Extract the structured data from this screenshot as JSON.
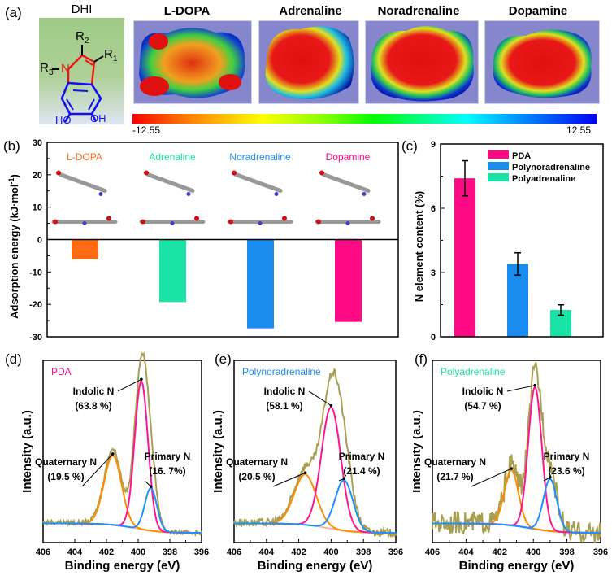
{
  "panel_a": {
    "label": "(a)",
    "dhi": {
      "title": "DHI",
      "r1": "R",
      "r1_sub": "1",
      "r2": "R",
      "r2_sub": "2",
      "r3": "R",
      "r3_sub": "3",
      "n": "N",
      "ho": "HO",
      "oh": "OH"
    },
    "molecules": [
      {
        "name": "L-DOPA",
        "color": "#ff6a13"
      },
      {
        "name": "Adrenaline",
        "color": "#19e3a6"
      },
      {
        "name": "Noradrenaline",
        "color": "#1a8cf0"
      },
      {
        "name": "Dopamine",
        "color": "#ff0a85"
      }
    ],
    "colorbar": {
      "min": "-12.55",
      "max": "12.55"
    }
  },
  "chart_data": [
    {
      "id": "b",
      "label": "(b)",
      "type": "bar",
      "title": "",
      "xlabel": "",
      "ylabel": "Adsorption energy (kJ·mol⁻¹)",
      "ylabel_main": "Adsorption energy (kJ·mol",
      "ylabel_sup": "-1",
      "ylabel_end": ")",
      "ylim": [
        -30,
        30
      ],
      "yticks": [
        "30",
        "20",
        "10",
        "0",
        "-10",
        "-20",
        "-30"
      ],
      "categories": [
        "L-DOPA",
        "Adrenaline",
        "Noradrenaline",
        "Dopamine"
      ],
      "values": [
        -6.1,
        -19.3,
        -27.4,
        -25.4
      ],
      "colors": [
        "#ff6a13",
        "#19e3a6",
        "#1a8cf0",
        "#ff0a85"
      ],
      "grid": false
    },
    {
      "id": "c",
      "label": "(c)",
      "type": "bar",
      "xlabel": "",
      "ylabel": "N element content (%)",
      "ylim": [
        0,
        9
      ],
      "yticks": [
        "9",
        "6",
        "3",
        "0"
      ],
      "categories": [
        "PDA",
        "Polynoradrenaline",
        "Polyadrenaline"
      ],
      "values": [
        7.4,
        3.4,
        1.25
      ],
      "errors": [
        0.82,
        0.52,
        0.24
      ],
      "colors": [
        "#ff0a85",
        "#1a8cf0",
        "#19e3a6"
      ],
      "legend": "top-right",
      "grid": false
    },
    {
      "id": "d",
      "label": "(d)",
      "type": "line",
      "sample": "PDA",
      "sample_color": "#ff0a85",
      "xlabel": "Binding energy (eV)",
      "ylabel": "Intensity (a.u.)",
      "xlim": [
        406,
        396
      ],
      "xticks": [
        "406",
        "404",
        "402",
        "400",
        "398",
        "396"
      ],
      "peaks": [
        {
          "name": "Quaternary N",
          "percent": "(19.5 %)",
          "center": 401.6,
          "height": 0.44,
          "width": 0.55,
          "color": "#ff8c00"
        },
        {
          "name": "Indolic N",
          "percent": "(63.8 %)",
          "center": 399.8,
          "height": 0.94,
          "width": 0.42,
          "color": "#ff1493"
        },
        {
          "name": "Primary N",
          "percent": "(16. 7%)",
          "center": 399.2,
          "height": 0.27,
          "width": 0.38,
          "color": "#1e90ff"
        }
      ]
    },
    {
      "id": "e",
      "label": "(e)",
      "type": "line",
      "sample": "Polynoradrenaline",
      "sample_color": "#1a8cf0",
      "xlabel": "Binding energy (eV)",
      "ylabel": "Intensity (a.u.)",
      "xlim": [
        406,
        396
      ],
      "xticks": [
        "406",
        "404",
        "402",
        "400",
        "398",
        "396"
      ],
      "peaks": [
        {
          "name": "Quaternary N",
          "percent": "(20.5 %)",
          "center": 401.6,
          "height": 0.32,
          "width": 0.68,
          "color": "#ff8c00"
        },
        {
          "name": "Indolic N",
          "percent": "(58.1 %)",
          "center": 400.0,
          "height": 0.77,
          "width": 0.6,
          "color": "#ff1493"
        },
        {
          "name": "Primary N",
          "percent": "(21.4 %)",
          "center": 399.2,
          "height": 0.32,
          "width": 0.55,
          "color": "#1e90ff"
        }
      ]
    },
    {
      "id": "f",
      "label": "(f)",
      "type": "line",
      "sample": "Polyadrenaline",
      "sample_color": "#19e3a6",
      "xlabel": "Binding energy (eV)",
      "ylabel": "Intensity (a.u.)",
      "xlim": [
        406,
        396
      ],
      "xticks": [
        "406",
        "404",
        "402",
        "400",
        "398",
        "396"
      ],
      "peaks": [
        {
          "name": "Quaternary N",
          "percent": "(21.7 %)",
          "center": 401.3,
          "height": 0.35,
          "width": 0.42,
          "color": "#ff8c00"
        },
        {
          "name": "Indolic N",
          "percent": "(54.7 %)",
          "center": 399.9,
          "height": 0.9,
          "width": 0.4,
          "color": "#ff1493"
        },
        {
          "name": "Primary N",
          "percent": "(23.6 %)",
          "center": 399.0,
          "height": 0.33,
          "width": 0.4,
          "color": "#1e90ff"
        }
      ]
    }
  ]
}
